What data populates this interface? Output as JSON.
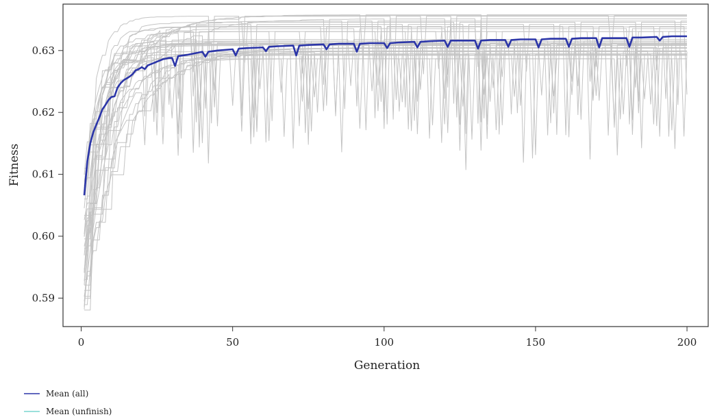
{
  "chart_data": {
    "type": "line",
    "xlabel": "Generation",
    "ylabel": "Fitness",
    "xlim": [
      -6,
      207
    ],
    "ylim": [
      0.5854,
      0.6375
    ],
    "x_ticks": [
      0,
      50,
      100,
      150,
      200
    ],
    "y_ticks": [
      0.59,
      0.6,
      0.61,
      0.62,
      0.63
    ],
    "x_tick_labels": [
      "0",
      "50",
      "100",
      "150",
      "200"
    ],
    "y_tick_labels": [
      "0.59",
      "0.60",
      "0.61",
      "0.62",
      "0.63"
    ],
    "grid": false,
    "legend_position": "bottom-left",
    "legend": [
      {
        "label": "Mean (all)",
        "color": "#2b35a8"
      },
      {
        "label": "Mean (unfinish)",
        "color": "#79d6cf"
      }
    ],
    "series": [
      {
        "name": "Mean (all)",
        "color": "#2b35a8",
        "x": [
          1,
          2,
          3,
          4,
          5,
          6,
          7,
          8,
          9,
          10,
          11,
          12,
          13,
          14,
          15,
          16,
          17,
          18,
          19,
          20,
          21,
          22,
          23,
          24,
          25,
          26,
          27,
          28,
          29,
          30,
          31,
          32,
          35,
          40,
          41,
          42,
          45,
          50,
          51,
          52,
          55,
          60,
          61,
          62,
          65,
          70,
          71,
          72,
          75,
          80,
          81,
          82,
          85,
          90,
          91,
          92,
          95,
          100,
          101,
          102,
          105,
          110,
          111,
          112,
          115,
          120,
          121,
          122,
          125,
          130,
          131,
          132,
          135,
          140,
          141,
          142,
          145,
          150,
          151,
          152,
          155,
          160,
          161,
          162,
          165,
          170,
          171,
          172,
          175,
          180,
          181,
          182,
          185,
          190,
          191,
          192,
          195,
          200
        ],
        "values": [
          0.6066,
          0.612,
          0.615,
          0.6168,
          0.618,
          0.6192,
          0.6205,
          0.6212,
          0.622,
          0.6225,
          0.6226,
          0.624,
          0.6247,
          0.6252,
          0.6255,
          0.6258,
          0.6262,
          0.6268,
          0.627,
          0.6273,
          0.627,
          0.6276,
          0.6278,
          0.628,
          0.6282,
          0.6284,
          0.6286,
          0.6287,
          0.6288,
          0.6288,
          0.6275,
          0.6291,
          0.6293,
          0.6298,
          0.629,
          0.6298,
          0.63,
          0.6302,
          0.6292,
          0.6303,
          0.6304,
          0.6305,
          0.6299,
          0.6306,
          0.6307,
          0.6308,
          0.6292,
          0.6308,
          0.6309,
          0.631,
          0.6302,
          0.631,
          0.6311,
          0.6311,
          0.6298,
          0.6311,
          0.6312,
          0.6312,
          0.6304,
          0.6312,
          0.6313,
          0.6314,
          0.6305,
          0.6314,
          0.6315,
          0.6316,
          0.6306,
          0.6316,
          0.6316,
          0.6316,
          0.6303,
          0.6316,
          0.6317,
          0.6317,
          0.6306,
          0.6317,
          0.6318,
          0.6318,
          0.6305,
          0.6318,
          0.6319,
          0.6319,
          0.6306,
          0.6319,
          0.632,
          0.632,
          0.6305,
          0.632,
          0.632,
          0.632,
          0.6306,
          0.6321,
          0.6321,
          0.6322,
          0.6316,
          0.6322,
          0.6323,
          0.6323
        ]
      }
    ]
  }
}
